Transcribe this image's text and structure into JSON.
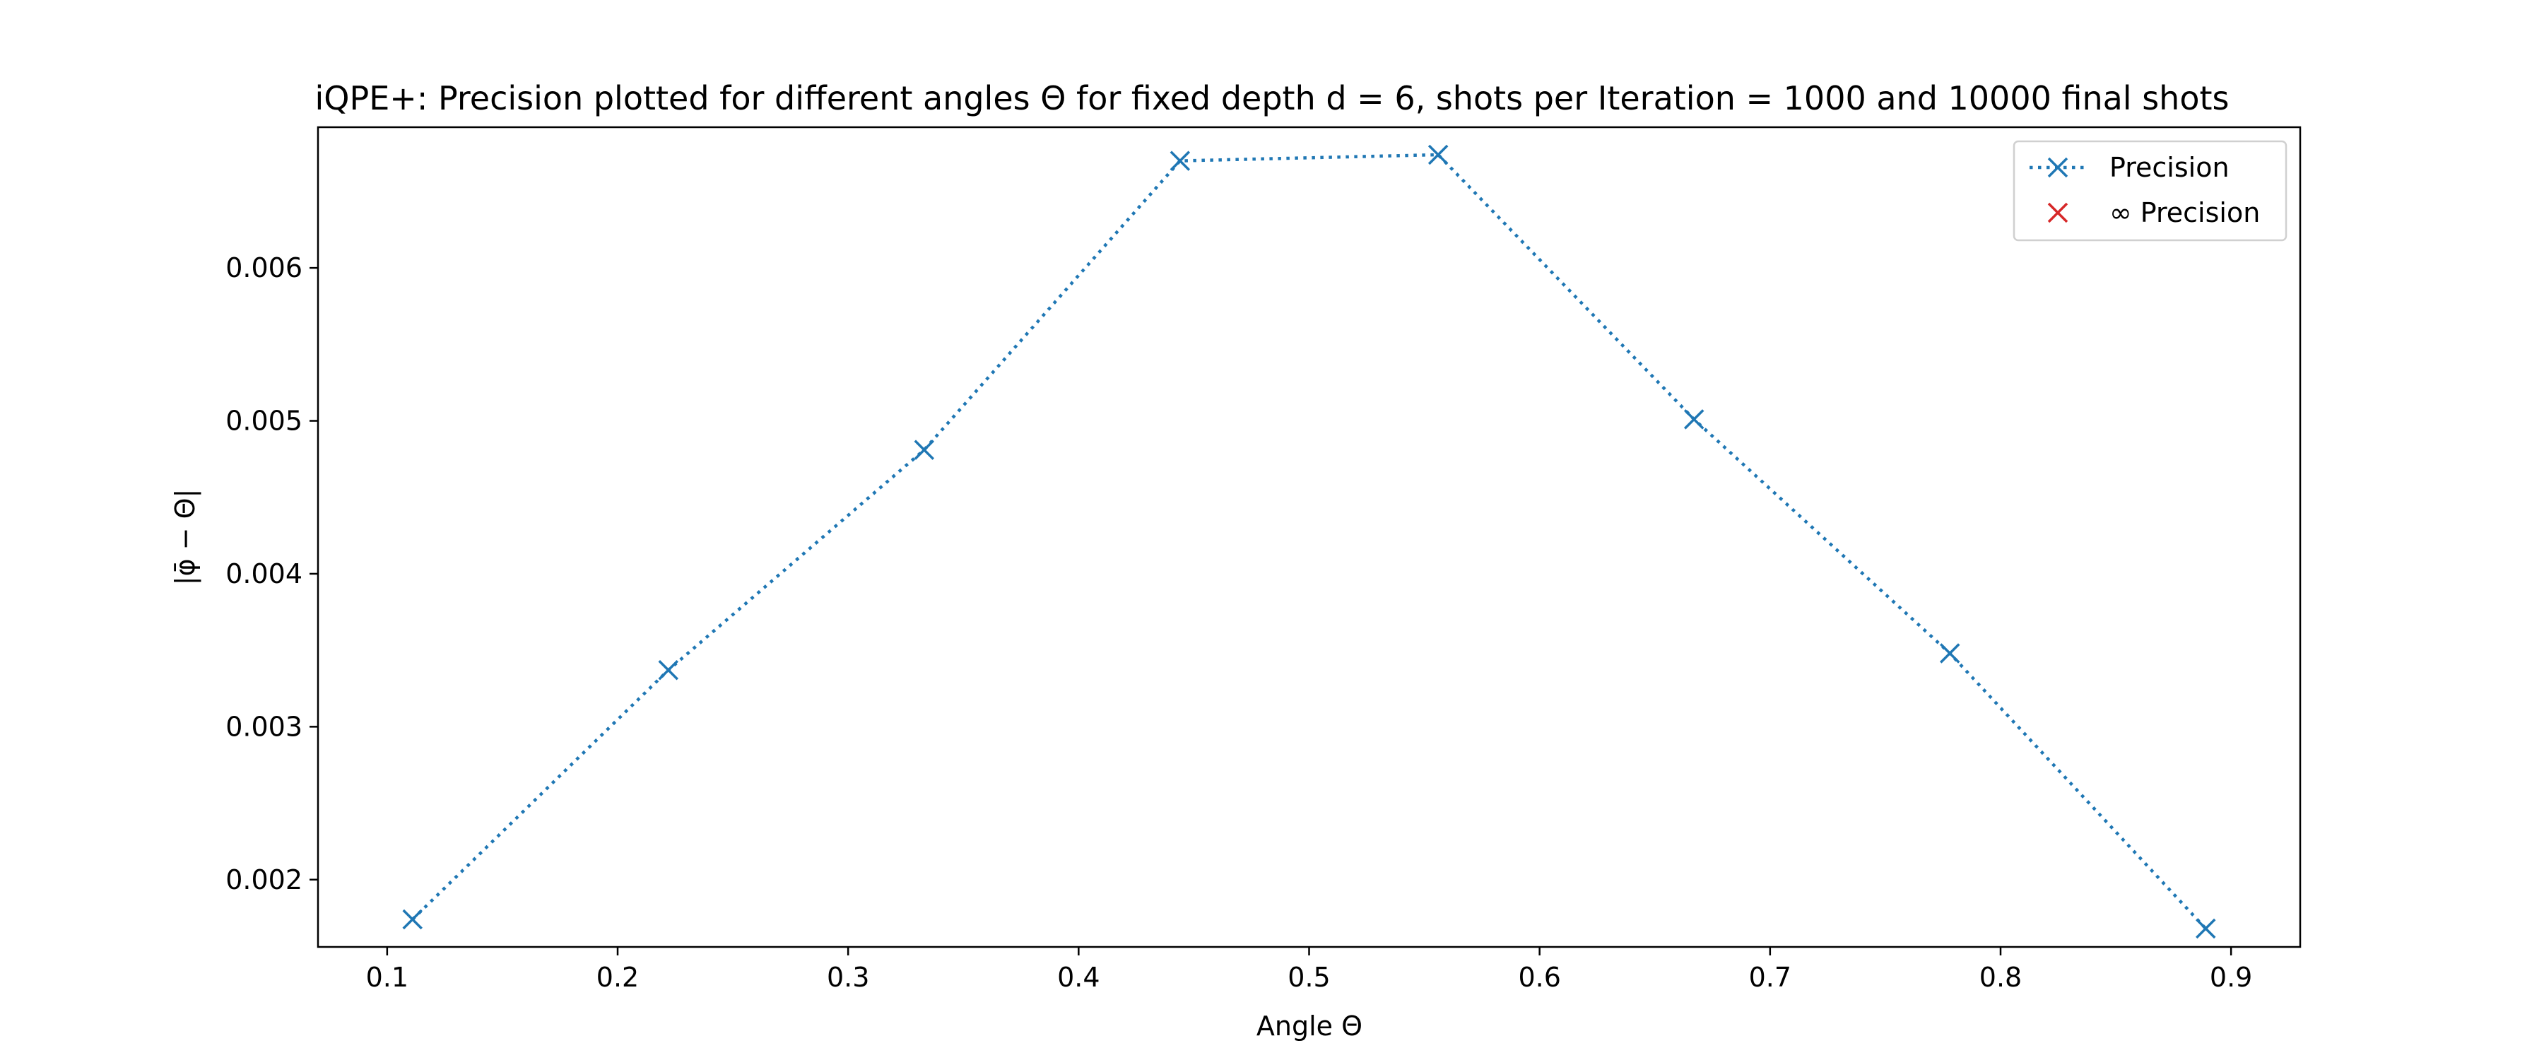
{
  "chart_data": {
    "type": "line",
    "title": "iQPE+: Precision plotted for different angles Θ for fixed depth d = 6, shots per Iteration = 1000 and 10000 final shots",
    "xlabel": "Angle Θ",
    "ylabel": "|φ̄ − Θ|",
    "xlim": [
      0.07,
      0.93
    ],
    "ylim": [
      0.00156,
      0.00692
    ],
    "xticks": [
      0.1,
      0.2,
      0.3,
      0.4,
      0.5,
      0.6,
      0.7,
      0.8,
      0.9
    ],
    "xtick_labels": [
      "0.1",
      "0.2",
      "0.3",
      "0.4",
      "0.5",
      "0.6",
      "0.7",
      "0.8",
      "0.9"
    ],
    "yticks": [
      0.002,
      0.003,
      0.004,
      0.005,
      0.006
    ],
    "ytick_labels": [
      "0.002",
      "0.003",
      "0.004",
      "0.005",
      "0.006"
    ],
    "grid": false,
    "legend_position": "top-right",
    "series": [
      {
        "name": "Precision",
        "color": "#1f77b4",
        "linestyle": "dotted",
        "marker": "x",
        "x": [
          0.111,
          0.222,
          0.333,
          0.444,
          0.556,
          0.667,
          0.778,
          0.889
        ],
        "y": [
          0.00174,
          0.00337,
          0.00481,
          0.0067,
          0.00674,
          0.00501,
          0.00348,
          0.00168
        ]
      },
      {
        "name": "∞ Precision",
        "color": "#d62728",
        "linestyle": "none",
        "marker": "x",
        "x": [],
        "y": []
      }
    ]
  }
}
